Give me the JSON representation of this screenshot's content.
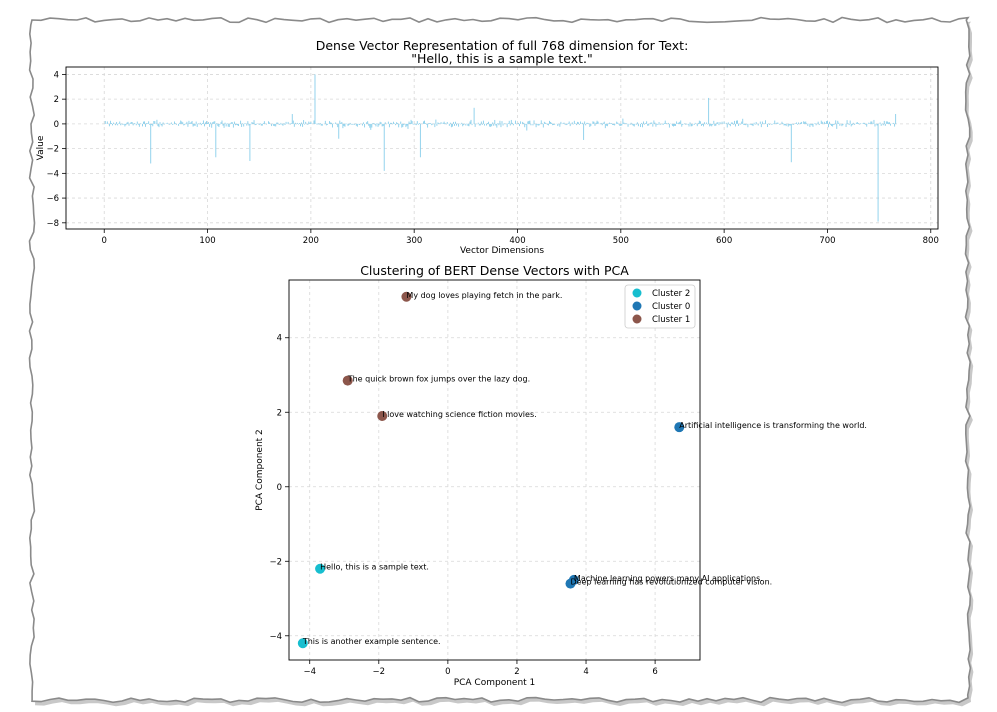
{
  "chart_data": [
    {
      "type": "bar",
      "title_line1": "Dense Vector Representation of full 768 dimension for Text:",
      "title_line2": "\"Hello, this is a sample text.\"",
      "xlabel": "Vector Dimensions",
      "ylabel": "Value",
      "xlim": [
        -37,
        807
      ],
      "ylim": [
        -8.5,
        4.6
      ],
      "xticks": [
        0,
        100,
        200,
        300,
        400,
        500,
        600,
        700,
        800
      ],
      "yticks": [
        4,
        2,
        0,
        -2,
        -4,
        -6,
        -8
      ],
      "grid": true,
      "bar_color": "#87ceeb",
      "dimension_count": 768,
      "noise_amplitude": 0.35,
      "notable_values": [
        {
          "x": 45,
          "y": -3.2
        },
        {
          "x": 108,
          "y": -2.7
        },
        {
          "x": 141,
          "y": -3.0
        },
        {
          "x": 204,
          "y": 4.0
        },
        {
          "x": 227,
          "y": -1.2
        },
        {
          "x": 271,
          "y": -3.8
        },
        {
          "x": 306,
          "y": -2.7
        },
        {
          "x": 358,
          "y": 1.3
        },
        {
          "x": 464,
          "y": -1.3
        },
        {
          "x": 585,
          "y": 2.1
        },
        {
          "x": 665,
          "y": -3.1
        },
        {
          "x": 749,
          "y": -7.9
        },
        {
          "x": 766,
          "y": 0.8
        }
      ]
    },
    {
      "type": "scatter",
      "title": "Clustering of BERT Dense Vectors with PCA",
      "xlabel": "PCA Component 1",
      "ylabel": "PCA Component 2",
      "xlim": [
        -4.6,
        7.3
      ],
      "ylim": [
        -4.65,
        5.55
      ],
      "xticks": [
        -4,
        -2,
        0,
        2,
        4,
        6
      ],
      "yticks": [
        4,
        2,
        0,
        -2,
        -4
      ],
      "grid": true,
      "legend_position": "top-right",
      "legend": [
        {
          "label": "Cluster 2",
          "color": "#17becf"
        },
        {
          "label": "Cluster 0",
          "color": "#1f77b4"
        },
        {
          "label": "Cluster 1",
          "color": "#8c564b"
        }
      ],
      "points": [
        {
          "x": -1.2,
          "y": 5.1,
          "cluster": "Cluster 1",
          "label": "My dog loves playing fetch in the park."
        },
        {
          "x": -2.9,
          "y": 2.85,
          "cluster": "Cluster 1",
          "label": "The quick brown fox jumps over the lazy dog."
        },
        {
          "x": -1.9,
          "y": 1.9,
          "cluster": "Cluster 1",
          "label": "I love watching science fiction movies."
        },
        {
          "x": 6.7,
          "y": 1.6,
          "cluster": "Cluster 0",
          "label": "Artificial intelligence is transforming the world."
        },
        {
          "x": 3.65,
          "y": -2.5,
          "cluster": "Cluster 0",
          "label": "Machine learning powers many AI applications."
        },
        {
          "x": 3.55,
          "y": -2.6,
          "cluster": "Cluster 0",
          "label": "Deep learning has revolutionized computer vision."
        },
        {
          "x": -3.7,
          "y": -2.2,
          "cluster": "Cluster 2",
          "label": "Hello, this is a sample text."
        },
        {
          "x": -4.2,
          "y": -4.2,
          "cluster": "Cluster 2",
          "label": "This is another example sentence."
        }
      ]
    }
  ]
}
